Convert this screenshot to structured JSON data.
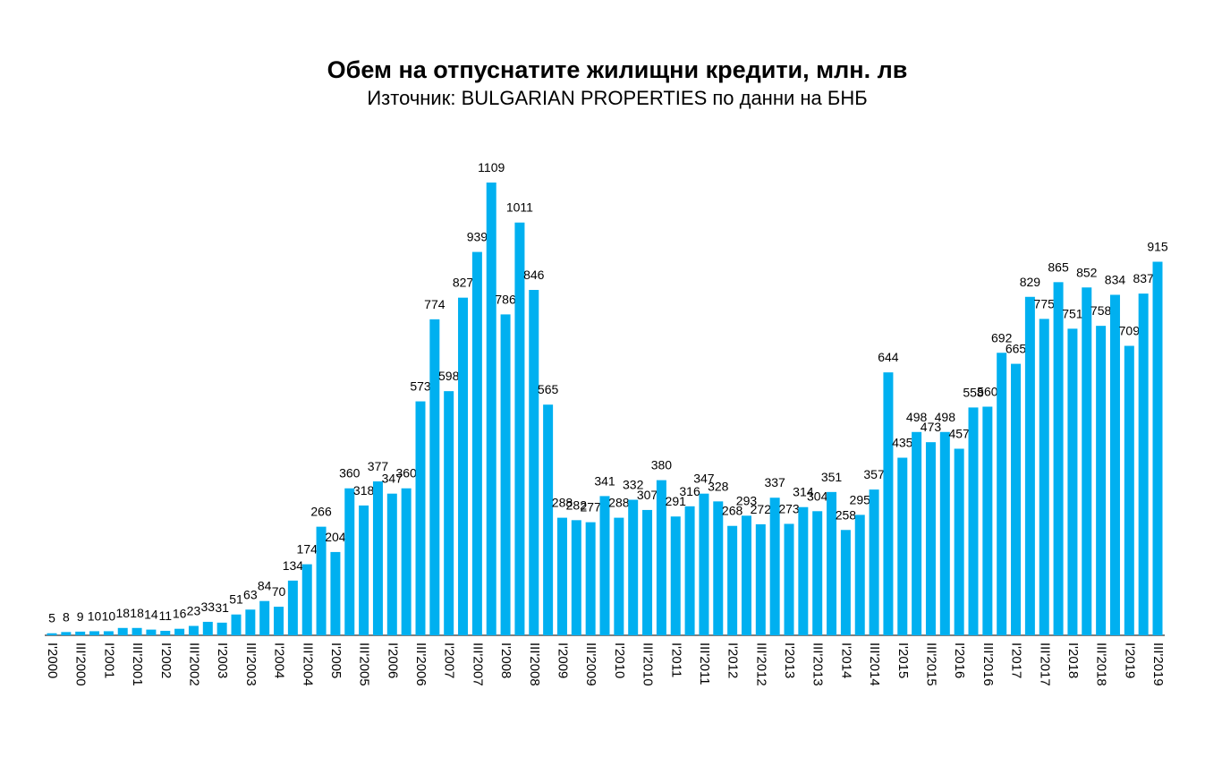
{
  "chart_data": {
    "type": "bar",
    "title": "Обем на отпуснатите жилищни кредити, млн. лв",
    "subtitle": "Източник: BULGARIAN PROPERTIES по данни на БНБ",
    "color": "#00b0f0",
    "categories": [
      "I'2000",
      null,
      "III'2000",
      null,
      "I'2001",
      null,
      "III'2001",
      null,
      "I'2002",
      null,
      "III'2002",
      null,
      "I'2003",
      null,
      "III'2003",
      null,
      "I'2004",
      null,
      "III'2004",
      null,
      "I'2005",
      null,
      "III'2005",
      null,
      "I'2006",
      null,
      "III'2006",
      null,
      "I'2007",
      null,
      "III'2007",
      null,
      "I'2008",
      null,
      "III'2008",
      null,
      "I'2009",
      null,
      "III'2009",
      null,
      "I'2010",
      null,
      "III'2010",
      null,
      "I'2011",
      null,
      "III'2011",
      null,
      "I'2012",
      null,
      "III'2012",
      null,
      "I'2013",
      null,
      "III'2013",
      null,
      "I'2014",
      null,
      "III'2014",
      null,
      "I'2015",
      null,
      "III'2015",
      null,
      "I'2016",
      null,
      "III'2016",
      null,
      "I'2017",
      null,
      "III'2017",
      null,
      "I'2018",
      null,
      "III'2018",
      null,
      "I'2019",
      null,
      "III'2019"
    ],
    "values": [
      5,
      8,
      9,
      10,
      10,
      18,
      18,
      14,
      11,
      16,
      23,
      33,
      31,
      51,
      63,
      84,
      70,
      134,
      174,
      266,
      204,
      360,
      318,
      377,
      347,
      360,
      573,
      774,
      598,
      827,
      939,
      1109,
      786,
      1011,
      846,
      565,
      288,
      282,
      277,
      341,
      288,
      332,
      307,
      380,
      291,
      316,
      347,
      328,
      268,
      293,
      272,
      337,
      273,
      314,
      304,
      351,
      258,
      295,
      357,
      644,
      435,
      498,
      473,
      498,
      457,
      558,
      560,
      692,
      665,
      829,
      775,
      865,
      751,
      852,
      758,
      834,
      709,
      837,
      915
    ]
  }
}
